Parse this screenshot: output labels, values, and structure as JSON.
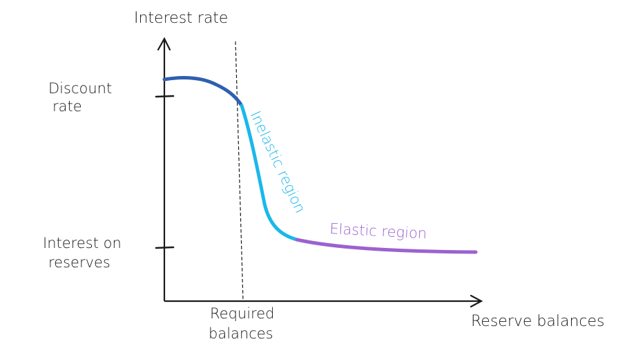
{
  "axes": {
    "y_label": "Interest rate",
    "x_label": "Reserve balances"
  },
  "ticks": {
    "discount_rate_line1": "Discount",
    "discount_rate_line2": "rate",
    "ior_line1": "Interest on",
    "ior_line2": "reserves",
    "required_line1": "Required",
    "required_line2": "balances"
  },
  "regions": {
    "inelastic": "Inelastic region",
    "elastic": "Elastic region"
  },
  "colors": {
    "axis": "#1a1a1a",
    "flat_segment": "#2e5fb0",
    "inelastic_segment": "#1ab8ea",
    "elastic_segment": "#9b62cf"
  }
}
